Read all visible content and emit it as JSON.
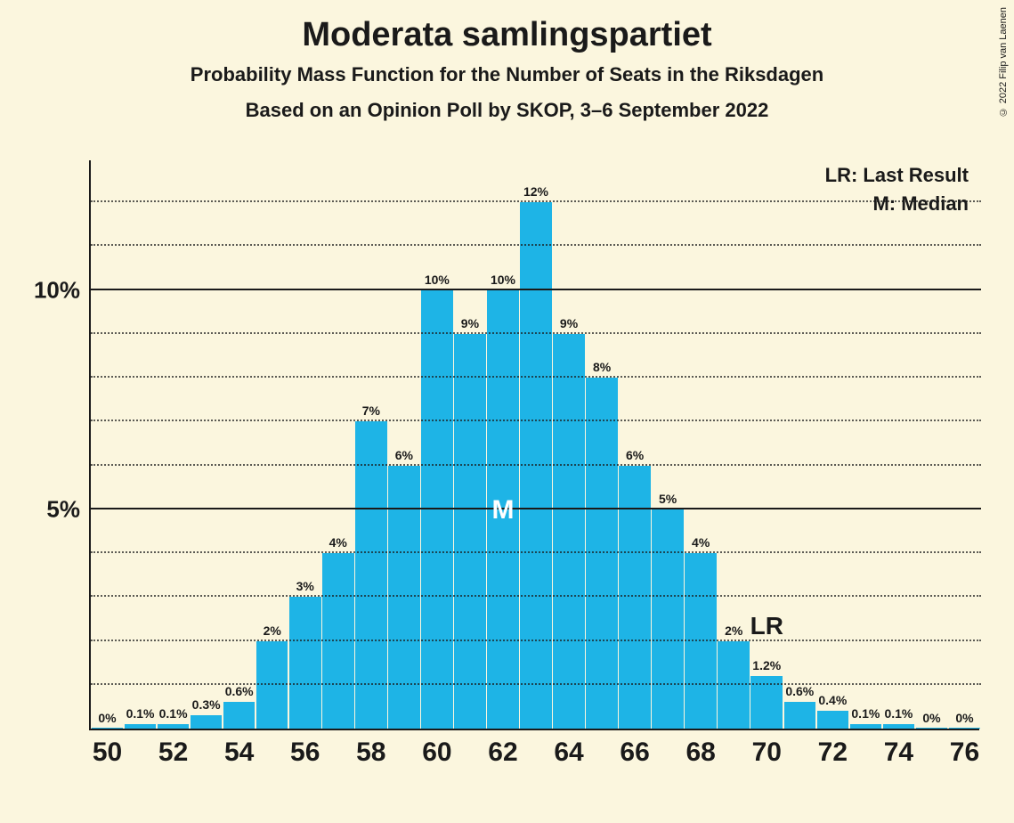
{
  "title": "Moderata samlingspartiet",
  "subtitle1": "Probability Mass Function for the Number of Seats in the Riksdagen",
  "subtitle2": "Based on an Opinion Poll by SKOP, 3–6 September 2022",
  "copyright": "© 2022 Filip van Laenen",
  "legend": {
    "lr": "LR: Last Result",
    "m": "M: Median"
  },
  "chart": {
    "type": "bar",
    "background_color": "#fbf6de",
    "bar_color": "#1eb4e6",
    "axis_color": "#1a1a1a",
    "grid_major_color": "#1a1a1a",
    "grid_minor_color": "#1a1a1a",
    "title_fontsize": 38,
    "subtitle_fontsize": 22,
    "ylabel_fontsize": 26,
    "xlabel_fontsize": 30,
    "barlabel_fontsize": 14,
    "legend_fontsize": 22,
    "ylim": [
      0,
      13
    ],
    "y_major_ticks": [
      5,
      10
    ],
    "y_major_labels": [
      "5%",
      "10%"
    ],
    "y_minor_ticks": [
      1,
      2,
      3,
      4,
      6,
      7,
      8,
      9,
      11,
      12
    ],
    "x_ticks": [
      50,
      52,
      54,
      56,
      58,
      60,
      62,
      64,
      66,
      68,
      70,
      72,
      74,
      76
    ],
    "bar_width_ratio": 0.96,
    "categories": [
      50,
      51,
      52,
      53,
      54,
      55,
      56,
      57,
      58,
      59,
      60,
      61,
      62,
      63,
      64,
      65,
      66,
      67,
      68,
      69,
      70,
      71,
      72,
      73,
      74,
      75,
      76
    ],
    "values": [
      0,
      0.1,
      0.1,
      0.3,
      0.6,
      2,
      3,
      4,
      7,
      6,
      10,
      9,
      10,
      12,
      9,
      8,
      6,
      5,
      4,
      2,
      1.2,
      0.6,
      0.4,
      0.1,
      0.1,
      0,
      0
    ],
    "value_labels": [
      "0%",
      "0.1%",
      "0.1%",
      "0.3%",
      "0.6%",
      "2%",
      "3%",
      "4%",
      "7%",
      "6%",
      "10%",
      "9%",
      "10%",
      "12%",
      "9%",
      "8%",
      "6%",
      "5%",
      "4%",
      "2%",
      "1.2%",
      "0.6%",
      "0.4%",
      "0.1%",
      "0.1%",
      "0%",
      "0%"
    ],
    "median_index": 12,
    "median_text": "M",
    "lr_index": 20,
    "lr_text": "LR"
  }
}
